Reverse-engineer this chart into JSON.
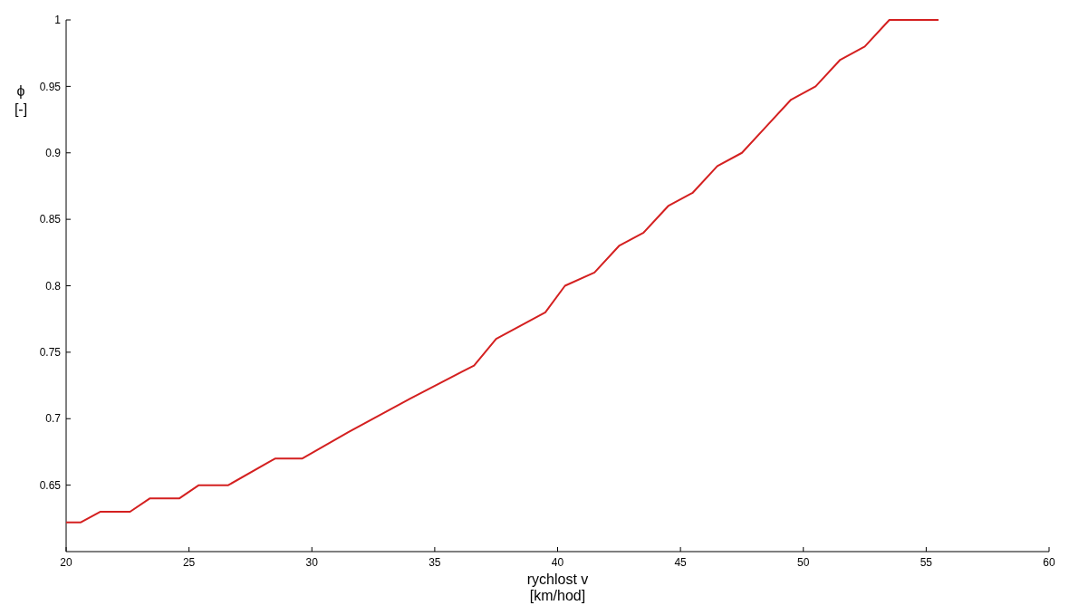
{
  "chart_data": {
    "type": "line",
    "xlabel": "rychlost v\n[km/hod]",
    "ylabel": "ϕ\n[-]",
    "x": [
      20,
      20.6,
      21.4,
      22.6,
      23.4,
      24.6,
      25.4,
      26.6,
      28.5,
      29.6,
      31.5,
      34,
      36.6,
      37.5,
      39.5,
      40.3,
      41.5,
      42.5,
      43.5,
      44.5,
      45.5,
      46.5,
      47.5,
      48.5,
      49.5,
      50.5,
      51.5,
      52.5,
      53.5,
      55.5
    ],
    "series": [
      {
        "color": "#d42020",
        "values": [
          0.622,
          0.622,
          0.63,
          0.63,
          0.64,
          0.64,
          0.65,
          0.65,
          0.67,
          0.67,
          0.69,
          0.715,
          0.74,
          0.76,
          0.78,
          0.8,
          0.81,
          0.83,
          0.84,
          0.86,
          0.87,
          0.89,
          0.9,
          0.92,
          0.94,
          0.95,
          0.97,
          0.98,
          1,
          1
        ]
      }
    ],
    "xlim": [
      20,
      60
    ],
    "xticks": [
      20,
      25,
      30,
      35,
      40,
      45,
      50,
      55,
      60
    ],
    "ylim": [
      0.6,
      1
    ],
    "yticks": [
      0.65,
      0.7,
      0.75,
      0.8,
      0.85,
      0.9,
      0.95,
      1
    ],
    "grid": false,
    "marker": "none",
    "line_style": "solid"
  }
}
